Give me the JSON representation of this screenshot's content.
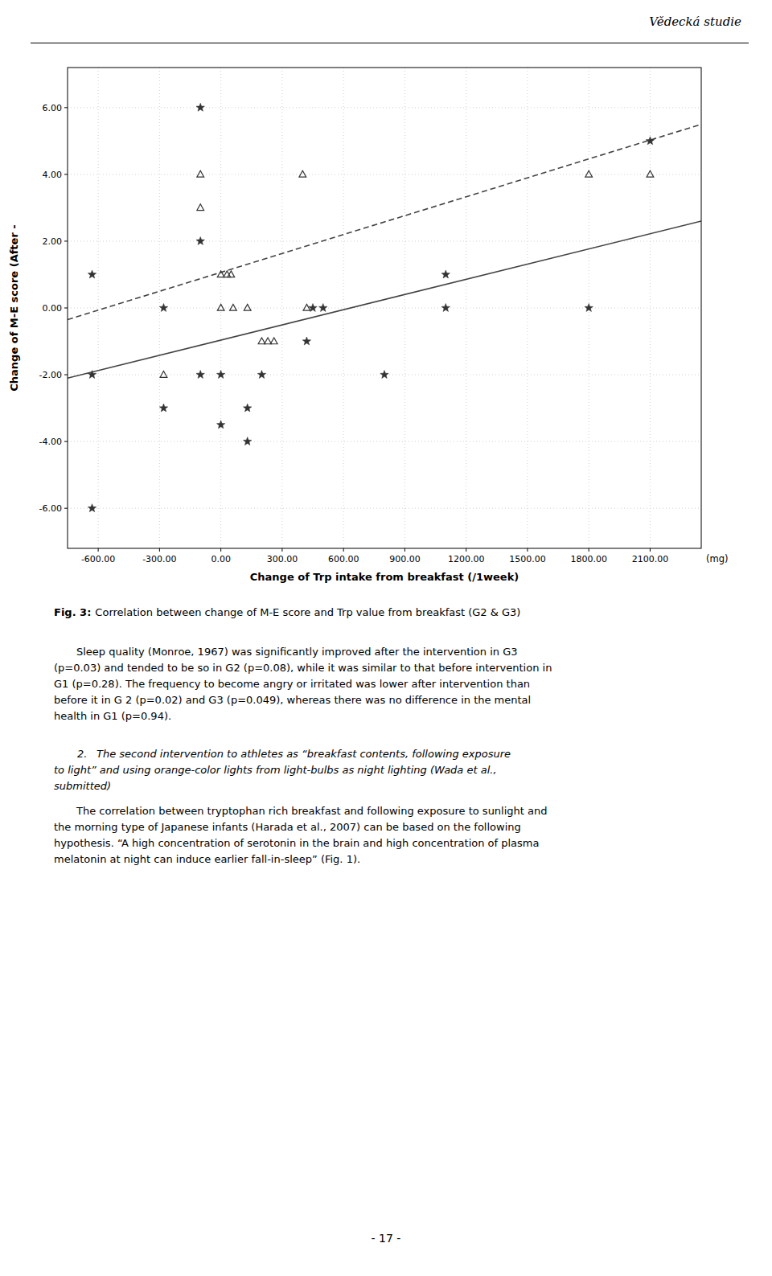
{
  "header": "Vědecká studie",
  "chart_data": {
    "type": "scatter",
    "xlabel": "Change of Trp intake from breakfast (/1week)",
    "xlabel_unit": "(mg)",
    "ylabel": "Change of M-E score (After -",
    "xlim": [
      -750,
      2350
    ],
    "ylim": [
      -7.2,
      7.2
    ],
    "xticks": [
      {
        "value": -600,
        "label": "-600.00"
      },
      {
        "value": -300,
        "label": "-300.00"
      },
      {
        "value": 0,
        "label": "0.00"
      },
      {
        "value": 300,
        "label": "300.00"
      },
      {
        "value": 600,
        "label": "600.00"
      },
      {
        "value": 900,
        "label": "900.00"
      },
      {
        "value": 1200,
        "label": "1200.00"
      },
      {
        "value": 1500,
        "label": "1500.00"
      },
      {
        "value": 1800,
        "label": "1800.00"
      },
      {
        "value": 2100,
        "label": "2100.00"
      }
    ],
    "yticks": [
      {
        "value": -6,
        "label": "-6.00"
      },
      {
        "value": -4,
        "label": "-4.00"
      },
      {
        "value": -2,
        "label": "-2.00"
      },
      {
        "value": 0,
        "label": "0.00"
      },
      {
        "value": 2,
        "label": "2.00"
      },
      {
        "value": 4,
        "label": "4.00"
      },
      {
        "value": 6,
        "label": "6.00"
      }
    ],
    "grid": true,
    "series": [
      {
        "type": "line",
        "line_style": "solid",
        "color": "#444444",
        "x": [
          -750,
          2350
        ],
        "values": [
          -2.1,
          2.6
        ]
      },
      {
        "type": "line",
        "line_style": "dashed",
        "color": "#444444",
        "x": [
          -750,
          2350
        ],
        "values": [
          -0.35,
          5.5
        ]
      },
      {
        "type": "scatter",
        "marker": "star",
        "color": "#333333",
        "x": [
          -630,
          -630,
          -630,
          -280,
          -280,
          -100,
          -100,
          -100,
          0,
          0,
          130,
          130,
          200,
          420,
          450,
          500,
          800,
          1100,
          1100,
          1800,
          2100
        ],
        "values": [
          1.0,
          -2.0,
          -6.0,
          0.0,
          -3.0,
          6.0,
          2.0,
          -2.0,
          -2.0,
          -3.5,
          -4.0,
          -3.0,
          -2.0,
          -1.0,
          0.0,
          0.0,
          -2.0,
          1.0,
          0.0,
          0.0,
          5.0
        ]
      },
      {
        "type": "scatter",
        "marker": "triangle",
        "color": "#333333",
        "x": [
          -280,
          -100,
          -100,
          0,
          30,
          0,
          60,
          50,
          130,
          200,
          230,
          260,
          400,
          420,
          1800,
          2100
        ],
        "values": [
          -2.0,
          4.0,
          3.0,
          1.0,
          1.0,
          0.0,
          0.0,
          1.0,
          0.0,
          -1.0,
          -1.0,
          -1.0,
          4.0,
          0.0,
          4.0,
          4.0
        ]
      }
    ]
  },
  "caption": {
    "label": "Fig. 3:",
    "text": "Correlation between change of M-E score and Trp value from breakfast (G2 & G3)"
  },
  "sections": [
    {
      "lines": [
        "Sleep quality (Monroe, 1967) was significantly improved after the intervention in G3",
        "(p=0.03) and tended to be so in G2 (p=0.08), while it was similar to that before intervention in",
        "G1 (p=0.28). The frequency to become angry or irritated was lower after intervention than",
        "before it in G 2 (p=0.02) and G3 (p=0.049), whereas there was no difference in the mental",
        "health in G1 (p=0.94)."
      ]
    },
    {
      "number": "2.",
      "title_lines": [
        "The second intervention to athletes as “breakfast contents, following exposure",
        "to light” and using orange-color lights from light-bulbs as night lighting (Wada et al.,",
        "submitted)"
      ],
      "lines": [
        "The correlation between tryptophan rich breakfast and following exposure to sunlight and",
        "the morning type of Japanese infants (Harada et al., 2007) can be based on the following",
        "hypothesis. “A high concentration of serotonin in the brain and high concentration of plasma",
        "melatonin at night can induce earlier fall-in-sleep” (Fig. 1)."
      ]
    }
  ],
  "page_number": "- 17 -"
}
